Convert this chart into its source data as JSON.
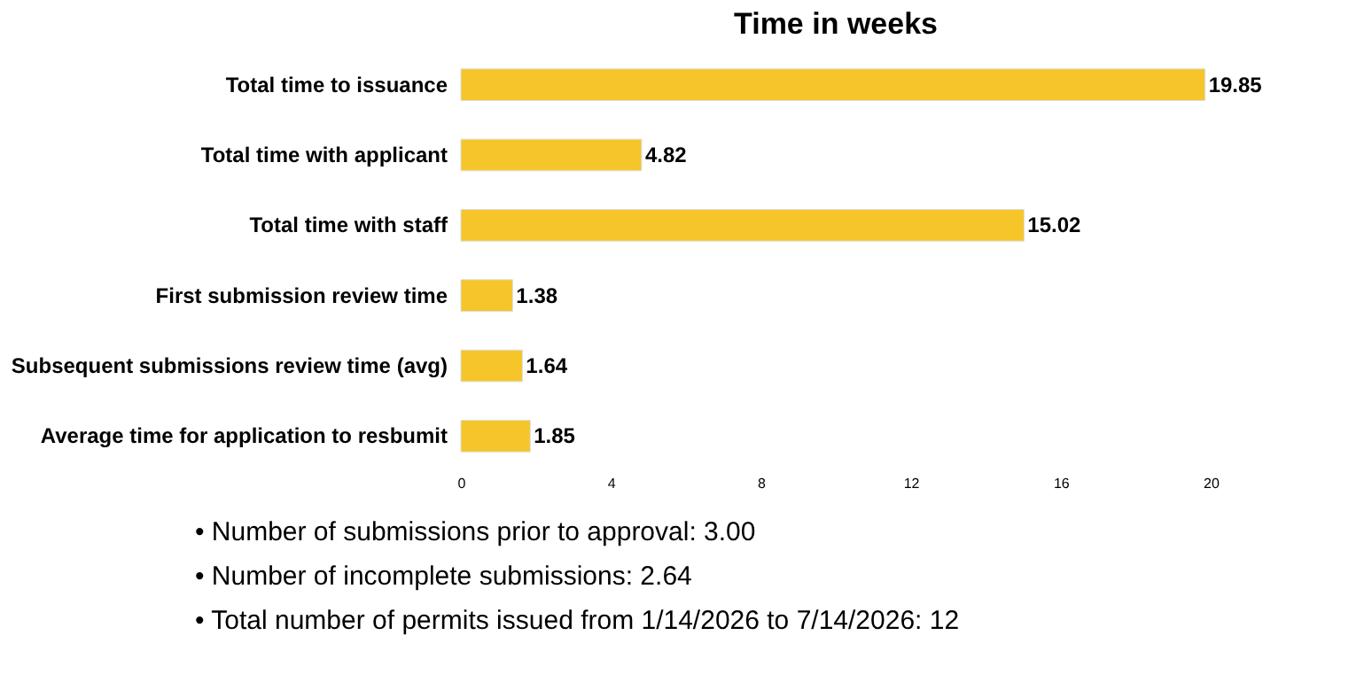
{
  "chart_data": {
    "type": "bar",
    "orientation": "horizontal",
    "title": "Time in weeks",
    "categories": [
      "Total time to issuance",
      "Total time with applicant",
      "Total time with staff",
      "First submission review time",
      "Subsequent submissions review time (avg)",
      "Average time for application to resbumit"
    ],
    "values": [
      19.85,
      4.82,
      15.02,
      1.38,
      1.64,
      1.85
    ],
    "color": "#f5c52a",
    "xlim": [
      0,
      20
    ],
    "xticks": [
      0,
      4,
      8,
      12,
      16,
      20
    ],
    "data_labels": true,
    "grid": false,
    "annotations": [
      "• Number of submissions prior to approval: 3.00",
      "• Number of incomplete submissions:  2.64",
      "• Total number of permits issued from 1/14/2026 to 7/14/2026: 12"
    ]
  }
}
